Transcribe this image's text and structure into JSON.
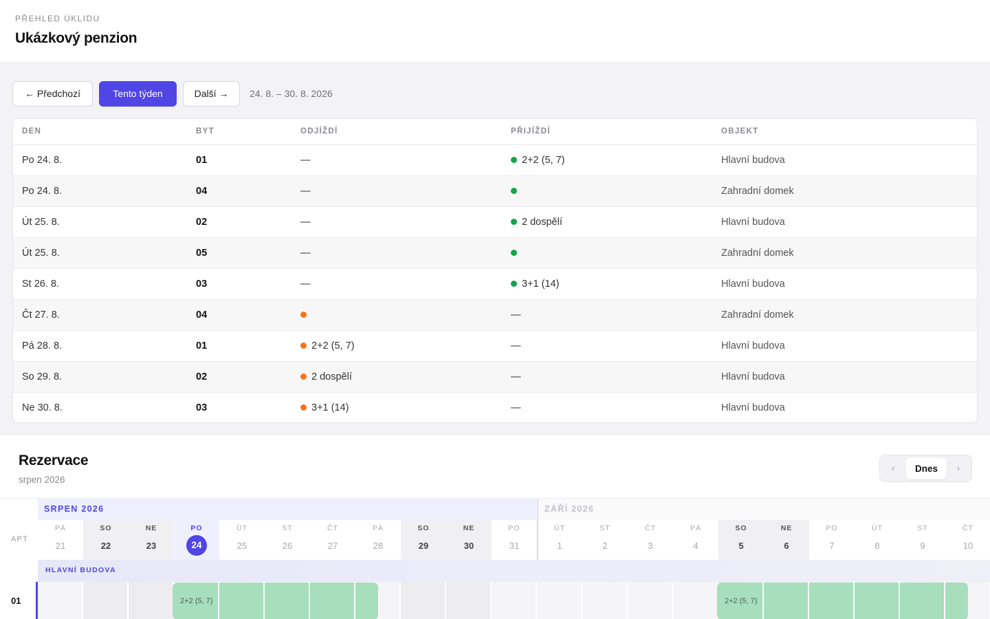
{
  "header": {
    "eyebrow": "PŘEHLED ÚKLIDU",
    "title": "Ukázkový penzion"
  },
  "toolbar": {
    "prev_label": "← Předchozí",
    "this_week_label": "Tento týden",
    "next_label": "Další →",
    "range": "24. 8. – 30. 8. 2026"
  },
  "table": {
    "columns": [
      "DEN",
      "BYT",
      "ODJÍŽDÍ",
      "PŘIJÍŽDÍ",
      "OBJEKT"
    ],
    "rows": [
      {
        "den": "Po 24. 8.",
        "byt": "01",
        "odjizdi": "—",
        "odj_dot": false,
        "prijizdi": "2+2 (5, 7)",
        "pri_dot": true,
        "objekt": "Hlavní budova"
      },
      {
        "den": "Po 24. 8.",
        "byt": "04",
        "odjizdi": "—",
        "odj_dot": false,
        "prijizdi": "",
        "pri_dot": true,
        "objekt": "Zahradní domek"
      },
      {
        "den": "Út 25. 8.",
        "byt": "02",
        "odjizdi": "—",
        "odj_dot": false,
        "prijizdi": "2 dospělí",
        "pri_dot": true,
        "objekt": "Hlavní budova"
      },
      {
        "den": "Út 25. 8.",
        "byt": "05",
        "odjizdi": "—",
        "odj_dot": false,
        "prijizdi": "",
        "pri_dot": true,
        "objekt": "Zahradní domek"
      },
      {
        "den": "St 26. 8.",
        "byt": "03",
        "odjizdi": "—",
        "odj_dot": false,
        "prijizdi": "3+1 (14)",
        "pri_dot": true,
        "objekt": "Hlavní budova"
      },
      {
        "den": "Čt 27. 8.",
        "byt": "04",
        "odjizdi": "",
        "odj_dot": true,
        "prijizdi": "—",
        "pri_dot": false,
        "objekt": "Zahradní domek"
      },
      {
        "den": "Pá 28. 8.",
        "byt": "01",
        "odjizdi": "2+2 (5, 7)",
        "odj_dot": true,
        "prijizdi": "—",
        "pri_dot": false,
        "objekt": "Hlavní budova"
      },
      {
        "den": "So 29. 8.",
        "byt": "02",
        "odjizdi": "2 dospělí",
        "odj_dot": true,
        "prijizdi": "—",
        "pri_dot": false,
        "objekt": "Hlavní budova"
      },
      {
        "den": "Ne 30. 8.",
        "byt": "03",
        "odjizdi": "3+1 (14)",
        "odj_dot": true,
        "prijizdi": "—",
        "pri_dot": false,
        "objekt": "Hlavní budova"
      }
    ]
  },
  "reservations": {
    "title": "Rezervace",
    "subtitle": "srpen 2026",
    "pager": {
      "prev": "‹",
      "today": "Dnes",
      "next": "›"
    },
    "apt_header": "APT",
    "months": {
      "aug": "SRPEN 2026",
      "sep": "ZÁŘÍ 2026"
    },
    "days": [
      {
        "dn": "PÁ",
        "dd": "21",
        "weekend": false,
        "today": false
      },
      {
        "dn": "SO",
        "dd": "22",
        "weekend": true,
        "today": false
      },
      {
        "dn": "NE",
        "dd": "23",
        "weekend": true,
        "today": false
      },
      {
        "dn": "PO",
        "dd": "24",
        "weekend": false,
        "today": true
      },
      {
        "dn": "ÚT",
        "dd": "25",
        "weekend": false,
        "today": false
      },
      {
        "dn": "ST",
        "dd": "26",
        "weekend": false,
        "today": false
      },
      {
        "dn": "ČT",
        "dd": "27",
        "weekend": false,
        "today": false
      },
      {
        "dn": "PÁ",
        "dd": "28",
        "weekend": false,
        "today": false
      },
      {
        "dn": "SO",
        "dd": "29",
        "weekend": true,
        "today": false
      },
      {
        "dn": "NE",
        "dd": "30",
        "weekend": true,
        "today": false
      },
      {
        "dn": "PO",
        "dd": "31",
        "weekend": false,
        "today": false
      },
      {
        "dn": "ÚT",
        "dd": "1",
        "weekend": false,
        "today": false
      },
      {
        "dn": "ST",
        "dd": "2",
        "weekend": false,
        "today": false
      },
      {
        "dn": "ČT",
        "dd": "3",
        "weekend": false,
        "today": false
      },
      {
        "dn": "PÁ",
        "dd": "4",
        "weekend": false,
        "today": false
      },
      {
        "dn": "SO",
        "dd": "5",
        "weekend": true,
        "today": false
      },
      {
        "dn": "NE",
        "dd": "6",
        "weekend": true,
        "today": false
      },
      {
        "dn": "PO",
        "dd": "7",
        "weekend": false,
        "today": false
      },
      {
        "dn": "ÚT",
        "dd": "8",
        "weekend": false,
        "today": false
      },
      {
        "dn": "ST",
        "dd": "9",
        "weekend": false,
        "today": false
      },
      {
        "dn": "ČT",
        "dd": "10",
        "weekend": false,
        "today": false
      }
    ],
    "building": "HLAVNÍ BUDOVA",
    "apartments": [
      {
        "name": "01",
        "bookings": [
          {
            "label": "2+2 (5, 7)",
            "from_day": 3,
            "to_day": 7
          },
          {
            "label": "2+2 (5, 7)",
            "from_day": 15,
            "to_day": 20
          }
        ]
      }
    ]
  },
  "colors": {
    "accent": "#4f46e5",
    "arrival": "#16a34a",
    "departure": "#f97316",
    "booking": "#a7dfbc"
  }
}
